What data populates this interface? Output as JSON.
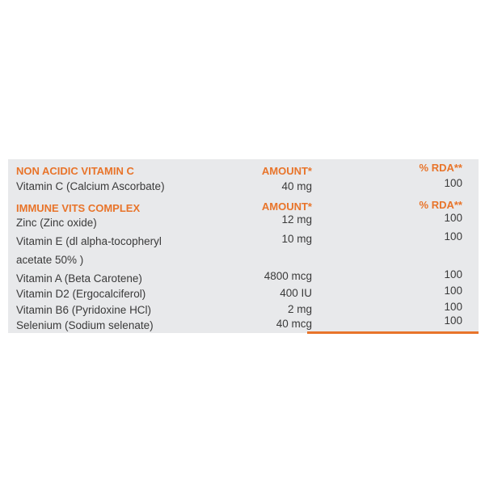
{
  "colors": {
    "accent": "#e8742a",
    "panel": "#e8e9eb",
    "text": "#3a3a3a"
  },
  "sections": [
    {
      "heading": "NON ACIDIC VITAMIN C",
      "amount_header": "AMOUNT*",
      "rda_header": "% RDA**",
      "rows": [
        {
          "name": "Vitamin C (Calcium Ascorbate)",
          "amount": "40 mg",
          "rda": "100"
        }
      ]
    },
    {
      "heading": "IMMUNE VITS COMPLEX",
      "amount_header": "AMOUNT*",
      "rda_header": "% RDA**",
      "rows": [
        {
          "name": "Zinc (Zinc oxide)",
          "amount": "12 mg",
          "rda": "100"
        },
        {
          "name": "Vitamin E (dl alpha-tocopheryl",
          "name_cont": "acetate 50% )",
          "amount": "10 mg",
          "rda": "100"
        },
        {
          "name": "Vitamin A (Beta Carotene)",
          "amount": "4800 mcg",
          "rda": "100"
        },
        {
          "name": "Vitamin D2 (Ergocalciferol)",
          "amount": "400 IU",
          "rda": "100"
        },
        {
          "name": "Vitamin B6 (Pyridoxine HCl)",
          "amount": "2 mg",
          "rda": "100"
        },
        {
          "name": "Selenium (Sodium selenate)",
          "amount": "40 mcg",
          "rda": "100"
        }
      ]
    }
  ]
}
